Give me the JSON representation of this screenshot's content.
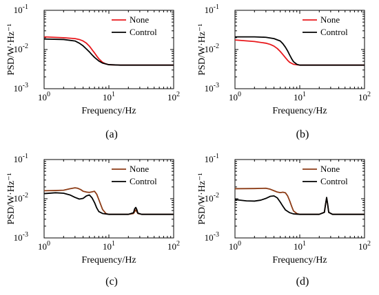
{
  "chart_data": [
    {
      "type": "line",
      "panel_label": "(a)",
      "xlabel": "Frequency/Hz",
      "ylabel": "PSD/W·Hz⁻¹",
      "xscale": "log",
      "yscale": "log",
      "xlim": [
        1,
        100
      ],
      "ylim": [
        0.001,
        0.1
      ],
      "legend_position": "top-right",
      "series": [
        {
          "name": "None",
          "color": "#e8171b",
          "x": [
            1,
            2,
            3,
            3.5,
            4,
            4.5,
            5,
            5.5,
            6,
            6.5,
            7,
            8,
            9,
            10,
            15,
            30,
            100
          ],
          "y": [
            0.021,
            0.02,
            0.019,
            0.018,
            0.0165,
            0.0145,
            0.0122,
            0.0099,
            0.0082,
            0.0068,
            0.0058,
            0.0047,
            0.0043,
            0.0041,
            0.004,
            0.004,
            0.004
          ]
        },
        {
          "name": "Control",
          "color": "#000000",
          "x": [
            1,
            2,
            3,
            3.5,
            4,
            4.5,
            5,
            5.5,
            6,
            7,
            8,
            10,
            15,
            30,
            100
          ],
          "y": [
            0.0185,
            0.018,
            0.0165,
            0.0145,
            0.0124,
            0.0103,
            0.0087,
            0.0073,
            0.0063,
            0.0051,
            0.0045,
            0.0041,
            0.004,
            0.004,
            0.004
          ]
        }
      ]
    },
    {
      "type": "line",
      "panel_label": "(b)",
      "xlabel": "Frequency/Hz",
      "ylabel": "PSD/W·Hz⁻¹",
      "xscale": "log",
      "yscale": "log",
      "xlim": [
        1,
        100
      ],
      "ylim": [
        0.001,
        0.1
      ],
      "legend_position": "top-right",
      "series": [
        {
          "name": "None",
          "color": "#e8171b",
          "x": [
            1,
            2,
            3,
            3.5,
            4,
            4.5,
            5,
            5.5,
            6,
            6.5,
            7,
            8,
            10,
            15,
            30,
            100
          ],
          "y": [
            0.0175,
            0.016,
            0.0145,
            0.0135,
            0.0122,
            0.0106,
            0.0089,
            0.0074,
            0.0062,
            0.0053,
            0.0047,
            0.0042,
            0.004,
            0.004,
            0.004,
            0.004
          ]
        },
        {
          "name": "Control",
          "color": "#000000",
          "x": [
            1,
            2,
            3,
            4,
            5,
            5.5,
            6,
            6.5,
            7,
            7.5,
            8,
            9,
            10,
            15,
            30,
            100
          ],
          "y": [
            0.021,
            0.021,
            0.0205,
            0.019,
            0.0165,
            0.014,
            0.0115,
            0.0092,
            0.0072,
            0.0058,
            0.0049,
            0.0042,
            0.004,
            0.004,
            0.004,
            0.004
          ]
        }
      ]
    },
    {
      "type": "line",
      "panel_label": "(c)",
      "xlabel": "Frequency/Hz",
      "ylabel": "PSD/W·Hz⁻¹",
      "xscale": "log",
      "yscale": "log",
      "xlim": [
        1,
        100
      ],
      "ylim": [
        0.001,
        0.1
      ],
      "legend_position": "top-right",
      "series": [
        {
          "name": "None",
          "color": "#8b3a14",
          "x": [
            1,
            1.5,
            2,
            2.5,
            3,
            3.3,
            3.7,
            4,
            4.5,
            5,
            5.5,
            6,
            6.5,
            7,
            7.5,
            8,
            9,
            10,
            20,
            24,
            26,
            28,
            32,
            100
          ],
          "y": [
            0.016,
            0.0162,
            0.0165,
            0.018,
            0.019,
            0.0185,
            0.017,
            0.0155,
            0.0148,
            0.0145,
            0.015,
            0.0155,
            0.013,
            0.0095,
            0.007,
            0.0053,
            0.0042,
            0.004,
            0.004,
            0.0042,
            0.0052,
            0.0042,
            0.004,
            0.004
          ]
        },
        {
          "name": "Control",
          "color": "#000000",
          "x": [
            1,
            1.5,
            2,
            2.5,
            3,
            3.5,
            4,
            4.5,
            5,
            5.5,
            6,
            6.5,
            7,
            8,
            10,
            20,
            24,
            25,
            26,
            27,
            28,
            32,
            100
          ],
          "y": [
            0.0135,
            0.0142,
            0.0138,
            0.0125,
            0.0108,
            0.0098,
            0.0102,
            0.0118,
            0.0125,
            0.0105,
            0.008,
            0.0058,
            0.0047,
            0.0042,
            0.004,
            0.004,
            0.0044,
            0.0055,
            0.006,
            0.0053,
            0.0043,
            0.004,
            0.004
          ]
        }
      ]
    },
    {
      "type": "line",
      "panel_label": "(d)",
      "xlabel": "Frequency/Hz",
      "ylabel": "PSD/W·Hz⁻¹",
      "xscale": "log",
      "yscale": "log",
      "xlim": [
        1,
        100
      ],
      "ylim": [
        0.001,
        0.1
      ],
      "legend_position": "top-right",
      "series": [
        {
          "name": "None",
          "color": "#8b3a14",
          "x": [
            1,
            2,
            3,
            3.5,
            4,
            4.5,
            5,
            5.5,
            6,
            6.5,
            7,
            7.5,
            8,
            9,
            10,
            20,
            24,
            25,
            26,
            27,
            28,
            32,
            100
          ],
          "y": [
            0.018,
            0.0182,
            0.0185,
            0.0175,
            0.016,
            0.0148,
            0.0143,
            0.0147,
            0.0142,
            0.0118,
            0.0088,
            0.0064,
            0.0049,
            0.0042,
            0.004,
            0.004,
            0.0045,
            0.0072,
            0.0105,
            0.007,
            0.0045,
            0.004,
            0.004
          ]
        },
        {
          "name": "Control",
          "color": "#000000",
          "x": [
            1,
            1.5,
            2,
            2.5,
            3,
            3.5,
            4,
            4.5,
            5,
            5.5,
            6,
            7,
            8,
            10,
            20,
            24,
            25,
            26,
            27,
            28,
            32,
            100
          ],
          "y": [
            0.0095,
            0.0088,
            0.0087,
            0.0092,
            0.0102,
            0.0115,
            0.0118,
            0.0105,
            0.0082,
            0.0064,
            0.0052,
            0.0044,
            0.0041,
            0.004,
            0.004,
            0.0045,
            0.0072,
            0.0108,
            0.0072,
            0.0045,
            0.004,
            0.004
          ]
        }
      ]
    }
  ],
  "tick_labels": {
    "x": [
      "10",
      "0",
      "10",
      "1",
      "10",
      "2"
    ],
    "y": [
      "10",
      "-3",
      "10",
      "-2",
      "10",
      "-1"
    ]
  }
}
